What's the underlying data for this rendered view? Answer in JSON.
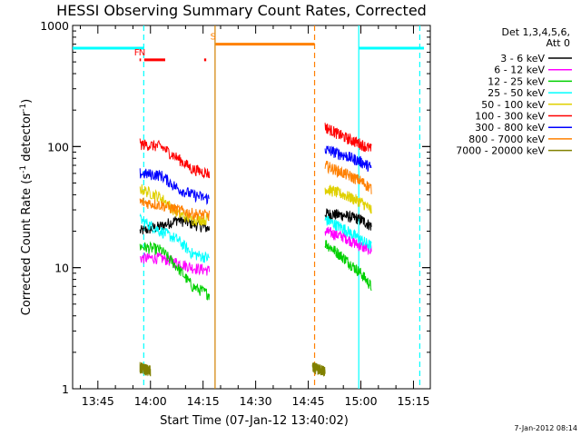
{
  "chart_data": {
    "type": "line",
    "title": "HESSI Observing Summary Count Rates, Corrected",
    "xlabel": "Start Time (07-Jan-12 13:40:02)",
    "ylabel_main": "Corrected Count Rate (s",
    "ylabel_sup1": "-1",
    "ylabel_mid": " detector",
    "ylabel_sup2": "-1",
    "ylabel_end": ")",
    "yscale": "log",
    "ylim": [
      1,
      1000
    ],
    "xlim": [
      13.63,
      15.33
    ],
    "x_unit": "decimal hours UT",
    "x_ticks": [
      {
        "label": "13:45",
        "value": 13.75
      },
      {
        "label": "14:00",
        "value": 14.0
      },
      {
        "label": "14:15",
        "value": 14.25
      },
      {
        "label": "14:30",
        "value": 14.5
      },
      {
        "label": "14:45",
        "value": 14.75
      },
      {
        "label": "15:00",
        "value": 15.0
      },
      {
        "label": "15:15",
        "value": 15.25
      }
    ],
    "y_ticks": [
      {
        "label": "1",
        "value": 1
      },
      {
        "label": "10",
        "value": 10
      },
      {
        "label": "100",
        "value": 100
      },
      {
        "label": "1000",
        "value": 1000
      }
    ],
    "legend_position": "top-right",
    "legend_header": [
      "Det 1,3,4,5,6,",
      "Att 0"
    ],
    "series": [
      {
        "name": "3 - 6 keV",
        "color": "#000000",
        "seg1": {
          "x": [
            13.95,
            14.05,
            14.13,
            14.2,
            14.28
          ],
          "y": [
            20,
            22,
            25,
            23,
            21
          ]
        },
        "seg2": {
          "x": [
            14.83,
            14.92,
            15.0,
            15.05
          ],
          "y": [
            28,
            27,
            25,
            22
          ]
        }
      },
      {
        "name": "6 - 12 keV",
        "color": "#ff00ff",
        "seg1": {
          "x": [
            13.95,
            14.05,
            14.13,
            14.2,
            14.28
          ],
          "y": [
            12,
            12,
            11,
            10,
            9.5
          ]
        },
        "seg2": {
          "x": [
            14.83,
            14.92,
            15.0,
            15.05
          ],
          "y": [
            20,
            18,
            15,
            14
          ]
        }
      },
      {
        "name": "12 - 25 keV",
        "color": "#00d000",
        "seg1": {
          "x": [
            13.95,
            14.05,
            14.13,
            14.2,
            14.28
          ],
          "y": [
            15,
            14,
            10,
            7,
            6
          ]
        },
        "seg2": {
          "x": [
            14.83,
            14.92,
            15.0,
            15.05
          ],
          "y": [
            16,
            12,
            9,
            7
          ]
        }
      },
      {
        "name": "25 - 50 keV",
        "color": "#00ffff",
        "seg1": {
          "x": [
            13.95,
            14.05,
            14.13,
            14.2,
            14.28
          ],
          "y": [
            25,
            20,
            17,
            13,
            12
          ]
        },
        "seg2": {
          "x": [
            14.83,
            14.92,
            15.0,
            15.05
          ],
          "y": [
            25,
            21,
            17,
            15
          ]
        }
      },
      {
        "name": "50 - 100 keV",
        "color": "#e0d000",
        "seg1": {
          "x": [
            13.95,
            14.05,
            14.13,
            14.2,
            14.28
          ],
          "y": [
            45,
            38,
            28,
            25,
            25
          ]
        },
        "seg2": {
          "x": [
            14.83,
            14.92,
            15.0,
            15.05
          ],
          "y": [
            45,
            40,
            35,
            30
          ]
        }
      },
      {
        "name": "100 - 300 keV",
        "color": "#ff0000",
        "seg1": {
          "x": [
            13.95,
            14.05,
            14.13,
            14.2,
            14.28
          ],
          "y": [
            105,
            100,
            80,
            65,
            60
          ]
        },
        "seg2": {
          "x": [
            14.83,
            14.92,
            15.0,
            15.05
          ],
          "y": [
            145,
            120,
            105,
            95
          ]
        }
      },
      {
        "name": "300 - 800 keV",
        "color": "#0000ff",
        "seg1": {
          "x": [
            13.95,
            14.05,
            14.13,
            14.2,
            14.28
          ],
          "y": [
            60,
            58,
            45,
            40,
            37
          ]
        },
        "seg2": {
          "x": [
            14.83,
            14.92,
            15.0,
            15.05
          ],
          "y": [
            95,
            85,
            75,
            67
          ]
        }
      },
      {
        "name": "800 - 7000 keV",
        "color": "#ff8000",
        "seg1": {
          "x": [
            13.95,
            14.05,
            14.13,
            14.2,
            14.28
          ],
          "y": [
            35,
            33,
            30,
            28,
            27
          ]
        },
        "seg2": {
          "x": [
            14.83,
            14.92,
            15.0,
            15.05
          ],
          "y": [
            70,
            60,
            52,
            45
          ]
        }
      },
      {
        "name": "7000 - 20000 keV",
        "color": "#808000",
        "seg1": {
          "x": [
            13.95,
            14.0
          ],
          "y": [
            1.5,
            1.4
          ]
        },
        "seg2": {
          "x": [
            14.77,
            14.83
          ],
          "y": [
            1.5,
            1.4
          ]
        }
      }
    ],
    "vertical_lines": [
      {
        "x": 13.968,
        "color": "#00ffff",
        "style": "dashed"
      },
      {
        "x": 14.307,
        "color": "#d08000",
        "style": "solid"
      },
      {
        "x": 14.78,
        "color": "#ff8000",
        "style": "dashed"
      },
      {
        "x": 14.99,
        "color": "#00ffff",
        "style": "solid"
      },
      {
        "x": 15.28,
        "color": "#00ffff",
        "style": "dashed"
      }
    ],
    "bars": [
      {
        "x": [
          13.63,
          13.97
        ],
        "y": 650,
        "color": "#00ffff",
        "label": ""
      },
      {
        "x": [
          14.99,
          15.3
        ],
        "y": 650,
        "color": "#00ffff",
        "label": ""
      },
      {
        "x": [
          14.31,
          14.78
        ],
        "y": 700,
        "color": "#ff8000",
        "label": "S"
      },
      {
        "x": [
          13.97,
          14.07
        ],
        "y": 520,
        "color": "#ff0000",
        "label": "N"
      },
      {
        "x": [
          13.948,
          13.955
        ],
        "y": 520,
        "color": "#ff0000",
        "label": "F"
      },
      {
        "x": [
          14.255,
          14.265
        ],
        "y": 520,
        "color": "#ff0000",
        "label": ""
      }
    ]
  },
  "timestamp": "7-Jan-2012 08:14"
}
